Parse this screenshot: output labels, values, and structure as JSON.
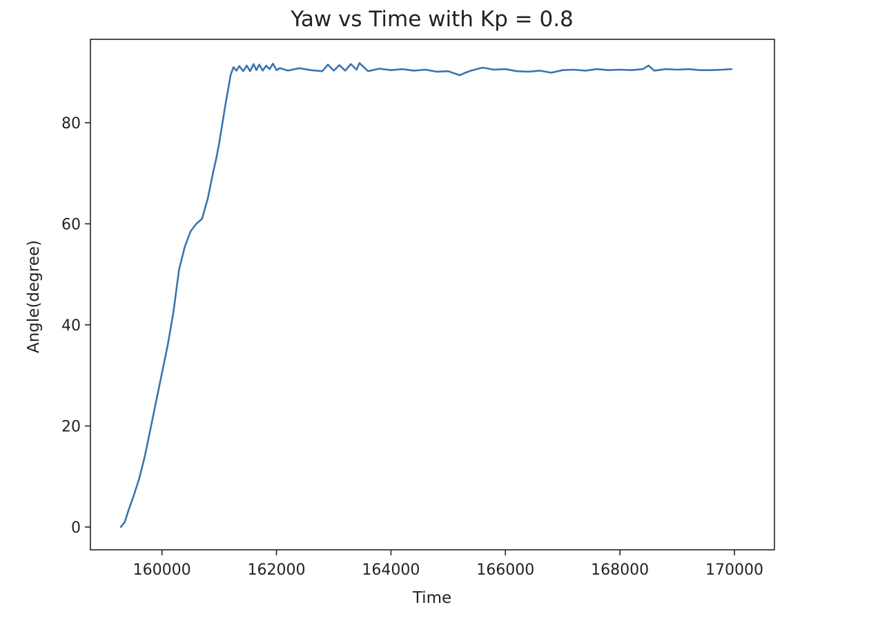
{
  "chart_data": {
    "type": "line",
    "title": "Yaw vs Time with Kp = 0.8",
    "xlabel": "Time",
    "ylabel": "Angle(degree)",
    "xlim": [
      158750,
      170700
    ],
    "ylim": [
      -4.5,
      96.5
    ],
    "xticks": [
      160000,
      162000,
      164000,
      166000,
      168000,
      170000
    ],
    "yticks": [
      0,
      20,
      40,
      60,
      80
    ],
    "grid": false,
    "line_color": "#3a73b0",
    "series": [
      {
        "x": [
          159280,
          159350,
          159420,
          159500,
          159600,
          159700,
          159800,
          159900,
          160000,
          160100,
          160200,
          160300,
          160400,
          160500,
          160600,
          160700,
          160800,
          160900,
          160950,
          161000,
          161100,
          161200,
          161250,
          161300,
          161350,
          161420,
          161480,
          161540,
          161600,
          161650,
          161700,
          161760,
          161820,
          161880,
          161940,
          162000,
          162060,
          162200,
          162400,
          162600,
          162800,
          162900,
          163000,
          163100,
          163200,
          163300,
          163400,
          163450,
          163600,
          163800,
          164000,
          164200,
          164400,
          164600,
          164800,
          165000,
          165100,
          165200,
          165300,
          165400,
          165600,
          165800,
          166000,
          166200,
          166400,
          166600,
          166800,
          167000,
          167200,
          167400,
          167600,
          167800,
          168000,
          168200,
          168400,
          168500,
          168600,
          168800,
          169000,
          169200,
          169400,
          169600,
          169800,
          169950
        ],
        "y": [
          0,
          1,
          3.5,
          6,
          9.5,
          14,
          19.5,
          25,
          30.5,
          36,
          42.5,
          51,
          55.5,
          58.5,
          60,
          61,
          65,
          70.5,
          73,
          76,
          83,
          89.5,
          91,
          90.3,
          91.2,
          90.2,
          91.3,
          90.2,
          91.6,
          90.4,
          91.5,
          90.3,
          91.3,
          90.6,
          91.7,
          90.4,
          90.8,
          90.3,
          90.8,
          90.4,
          90.2,
          91.5,
          90.3,
          91.4,
          90.3,
          91.6,
          90.5,
          91.8,
          90.2,
          90.7,
          90.4,
          90.6,
          90.3,
          90.5,
          90.1,
          90.2,
          89.8,
          89.4,
          89.9,
          90.3,
          90.9,
          90.5,
          90.6,
          90.2,
          90.1,
          90.3,
          89.9,
          90.4,
          90.5,
          90.3,
          90.6,
          90.4,
          90.5,
          90.4,
          90.6,
          91.3,
          90.3,
          90.6,
          90.5,
          90.6,
          90.4,
          90.4,
          90.5,
          90.6
        ]
      }
    ]
  }
}
